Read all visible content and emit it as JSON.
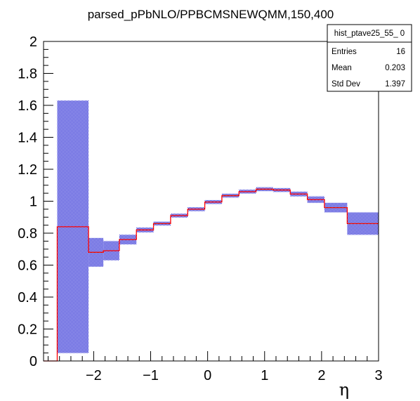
{
  "chart_data": {
    "type": "histogram",
    "title": "parsed_pPbNLO/PPBCMSNEWQMM,150,400",
    "xlabel": "η",
    "ylabel": "",
    "xlim": [
      -2.88,
      3.0
    ],
    "ylim": [
      0,
      2.0
    ],
    "x_ticks": [
      {
        "value": -2,
        "label": "−2"
      },
      {
        "value": -1,
        "label": "−1"
      },
      {
        "value": 0,
        "label": "0"
      },
      {
        "value": 1,
        "label": "1"
      },
      {
        "value": 2,
        "label": "2"
      },
      {
        "value": 3,
        "label": "3"
      }
    ],
    "y_ticks": [
      {
        "value": 0,
        "label": "0"
      },
      {
        "value": 0.2,
        "label": "0.2"
      },
      {
        "value": 0.4,
        "label": "0.4"
      },
      {
        "value": 0.6,
        "label": "0.6"
      },
      {
        "value": 0.8,
        "label": "0.8"
      },
      {
        "value": 1.0,
        "label": "1"
      },
      {
        "value": 1.2,
        "label": "1.2"
      },
      {
        "value": 1.4,
        "label": "1.4"
      },
      {
        "value": 1.6,
        "label": "1.6"
      },
      {
        "value": 1.8,
        "label": "1.8"
      },
      {
        "value": 2.0,
        "label": "2"
      }
    ],
    "bins": [
      {
        "low": -2.88,
        "high": -2.64,
        "value": 0.0,
        "error": 0.0
      },
      {
        "low": -2.64,
        "high": -2.09,
        "value": 0.84,
        "error": 0.79
      },
      {
        "low": -2.09,
        "high": -1.83,
        "value": 0.68,
        "error": 0.09
      },
      {
        "low": -1.83,
        "high": -1.55,
        "value": 0.69,
        "error": 0.06
      },
      {
        "low": -1.55,
        "high": -1.25,
        "value": 0.76,
        "error": 0.03
      },
      {
        "low": -1.25,
        "high": -0.95,
        "value": 0.82,
        "error": 0.015
      },
      {
        "low": -0.95,
        "high": -0.65,
        "value": 0.86,
        "error": 0.012
      },
      {
        "low": -0.65,
        "high": -0.35,
        "value": 0.91,
        "error": 0.012
      },
      {
        "low": -0.35,
        "high": -0.05,
        "value": 0.95,
        "error": 0.012
      },
      {
        "low": -0.05,
        "high": 0.25,
        "value": 0.995,
        "error": 0.012
      },
      {
        "low": 0.25,
        "high": 0.55,
        "value": 1.035,
        "error": 0.012
      },
      {
        "low": 0.55,
        "high": 0.85,
        "value": 1.06,
        "error": 0.012
      },
      {
        "low": 0.85,
        "high": 1.15,
        "value": 1.075,
        "error": 0.012
      },
      {
        "low": 1.15,
        "high": 1.45,
        "value": 1.07,
        "error": 0.012
      },
      {
        "low": 1.45,
        "high": 1.75,
        "value": 1.045,
        "error": 0.015
      },
      {
        "low": 1.75,
        "high": 2.05,
        "value": 1.01,
        "error": 0.02
      },
      {
        "low": 2.05,
        "high": 2.45,
        "value": 0.96,
        "error": 0.03
      },
      {
        "low": 2.45,
        "high": 3.0,
        "value": 0.86,
        "error": 0.07
      }
    ],
    "colors": {
      "line": "#ff0000",
      "error_band": "#0000cc",
      "frame": "#000000"
    },
    "grid": false
  },
  "stats_box": {
    "name": "hist_ptave25_55_ 0",
    "rows": [
      {
        "label": "Entries",
        "value": "16"
      },
      {
        "label": "Mean",
        "value": "0.203"
      },
      {
        "label": "Std Dev",
        "value": "1.397"
      }
    ]
  }
}
